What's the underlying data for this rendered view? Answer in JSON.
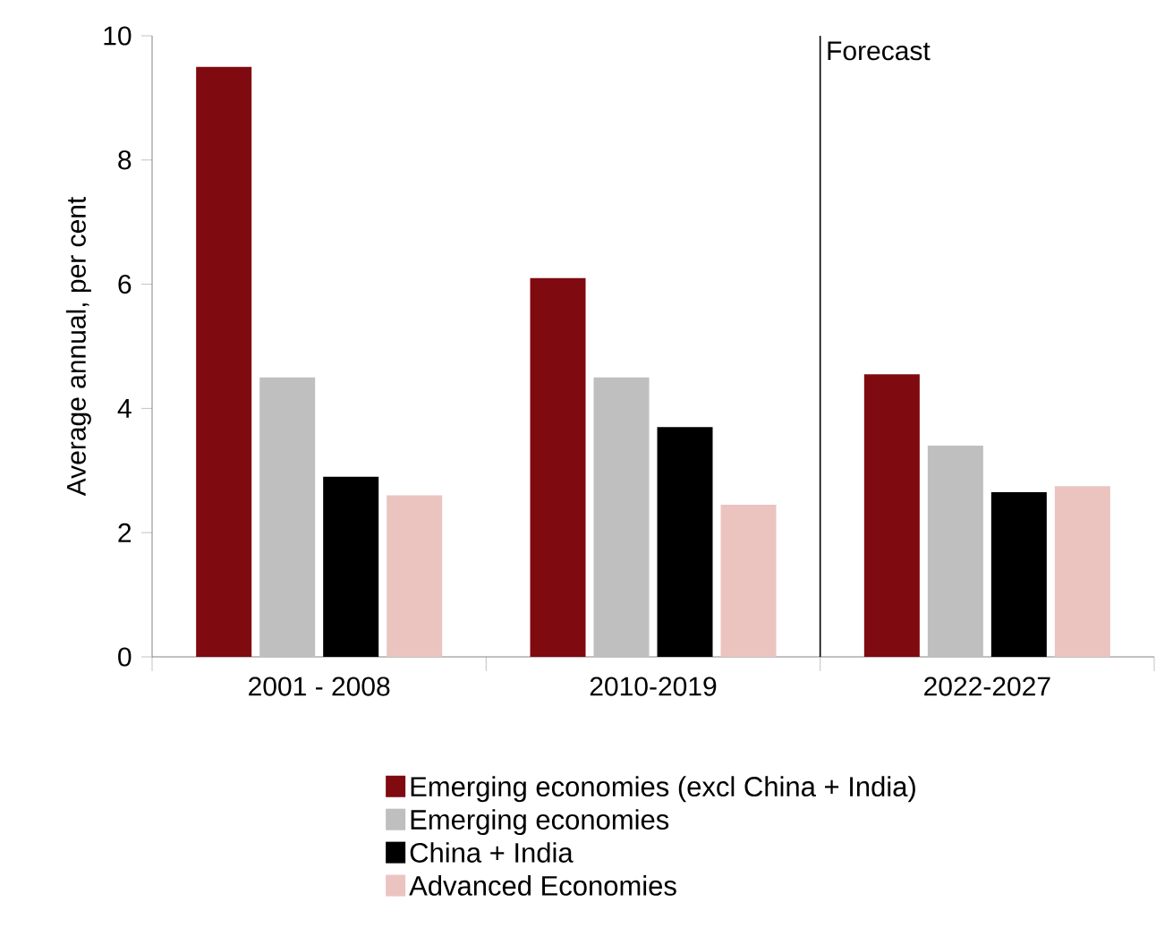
{
  "chart_data": {
    "type": "bar",
    "ylabel": "Average annual, per cent",
    "categories": [
      "2001 - 2008",
      "2010-2019",
      "2022-2027"
    ],
    "series": [
      {
        "name": "Emerging economies (excl China + India)",
        "color": "#7f0a10",
        "values": [
          9.5,
          6.1,
          4.55
        ]
      },
      {
        "name": "Emerging economies",
        "color": "#bfbfbf",
        "values": [
          4.5,
          4.5,
          3.4
        ]
      },
      {
        "name": "China + India",
        "color": "#000000",
        "values": [
          2.9,
          3.7,
          2.65
        ]
      },
      {
        "name": "Advanced Economies",
        "color": "#ebc4c0",
        "values": [
          2.6,
          2.45,
          2.75
        ]
      }
    ],
    "ylim": [
      0,
      10
    ],
    "yticks": [
      0,
      2,
      4,
      6,
      8,
      10
    ],
    "annotations": [
      "Forecast"
    ],
    "legend": "bottom",
    "grid": false
  }
}
